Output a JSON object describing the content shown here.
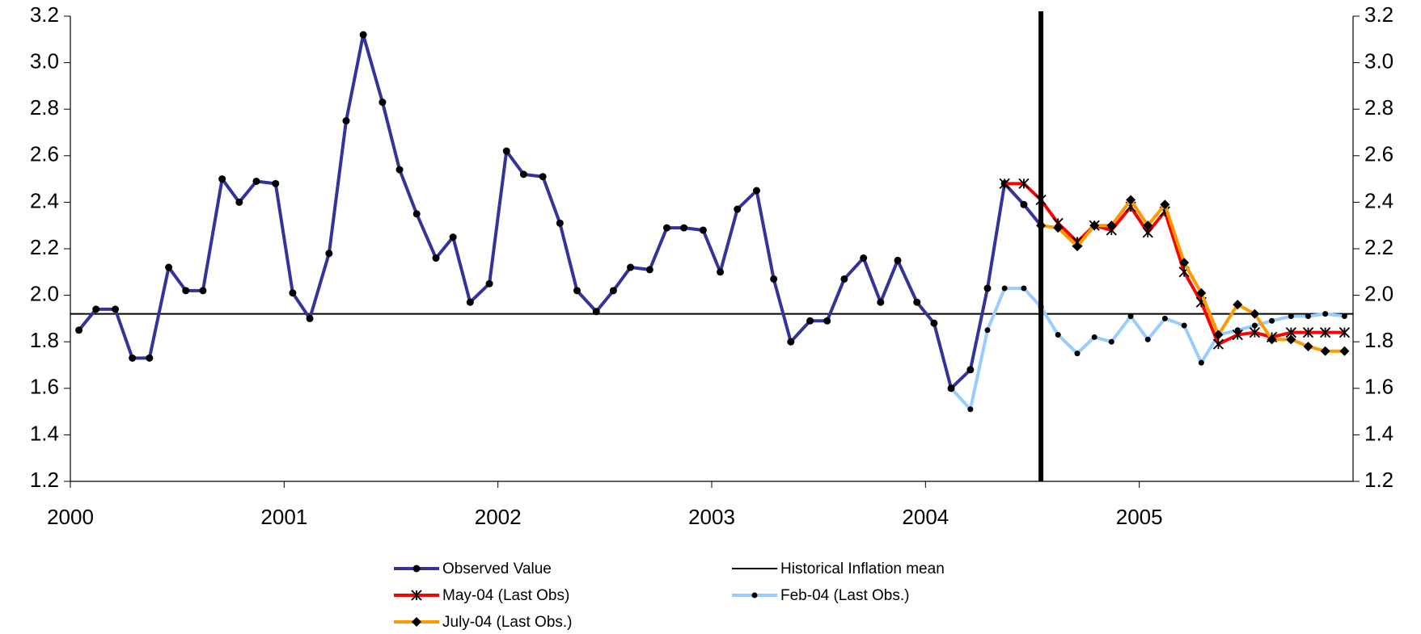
{
  "chart_data": {
    "type": "line",
    "x": [
      2000.04,
      2000.12,
      2000.21,
      2000.29,
      2000.37,
      2000.46,
      2000.54,
      2000.62,
      2000.71,
      2000.79,
      2000.87,
      2000.96,
      2001.04,
      2001.12,
      2001.21,
      2001.29,
      2001.37,
      2001.46,
      2001.54,
      2001.62,
      2001.71,
      2001.79,
      2001.87,
      2001.96,
      2002.04,
      2002.12,
      2002.21,
      2002.29,
      2002.37,
      2002.46,
      2002.54,
      2002.62,
      2002.71,
      2002.79,
      2002.87,
      2002.96,
      2003.04,
      2003.12,
      2003.21,
      2003.29,
      2003.37,
      2003.46,
      2003.54,
      2003.62,
      2003.71,
      2003.79,
      2003.87,
      2003.96,
      2004.04,
      2004.12,
      2004.21,
      2004.29,
      2004.37,
      2004.46,
      2004.54,
      2004.62,
      2004.71,
      2004.79,
      2004.87,
      2004.96,
      2005.04,
      2005.12,
      2005.21,
      2005.29,
      2005.37,
      2005.46,
      2005.54,
      2005.62,
      2005.71,
      2005.79,
      2005.87,
      2005.96
    ],
    "series": [
      {
        "name": "Observed Value",
        "color": "#333399",
        "marker": "circle",
        "values": [
          1.85,
          1.94,
          1.94,
          1.73,
          1.73,
          2.12,
          2.02,
          2.02,
          2.5,
          2.4,
          2.49,
          2.48,
          2.01,
          1.9,
          2.18,
          2.75,
          3.12,
          2.83,
          2.54,
          2.35,
          2.16,
          2.25,
          1.97,
          2.05,
          2.62,
          2.52,
          2.51,
          2.31,
          2.02,
          1.93,
          2.02,
          2.12,
          2.11,
          2.29,
          2.29,
          2.28,
          2.1,
          2.37,
          2.45,
          2.07,
          1.8,
          1.89,
          1.89,
          2.07,
          2.16,
          1.97,
          2.15,
          1.97,
          1.88,
          1.6,
          1.68,
          2.03,
          2.48,
          2.39,
          2.3,
          null,
          null,
          null,
          null,
          null,
          null,
          null,
          null,
          null,
          null,
          null,
          null,
          null,
          null,
          null,
          null,
          null
        ]
      },
      {
        "name": "May-04 (Last Obs)",
        "color": "#ff0000",
        "marker": "star",
        "values": [
          null,
          null,
          null,
          null,
          null,
          null,
          null,
          null,
          null,
          null,
          null,
          null,
          null,
          null,
          null,
          null,
          null,
          null,
          null,
          null,
          null,
          null,
          null,
          null,
          null,
          null,
          null,
          null,
          null,
          null,
          null,
          null,
          null,
          null,
          null,
          null,
          null,
          null,
          null,
          null,
          null,
          null,
          null,
          null,
          null,
          null,
          null,
          null,
          null,
          null,
          null,
          null,
          2.48,
          2.48,
          2.41,
          2.31,
          2.23,
          2.3,
          2.28,
          2.38,
          2.27,
          2.36,
          2.1,
          1.97,
          1.79,
          1.83,
          1.84,
          1.82,
          1.84,
          1.84,
          1.84,
          1.84
        ]
      },
      {
        "name": "Feb-04 (Last Obs.)",
        "color": "#99ccff",
        "marker": "dot",
        "values": [
          null,
          null,
          null,
          null,
          null,
          null,
          null,
          null,
          null,
          null,
          null,
          null,
          null,
          null,
          null,
          null,
          null,
          null,
          null,
          null,
          null,
          null,
          null,
          null,
          null,
          null,
          null,
          null,
          null,
          null,
          null,
          null,
          null,
          null,
          null,
          null,
          null,
          null,
          null,
          null,
          null,
          null,
          null,
          null,
          null,
          null,
          null,
          null,
          null,
          1.6,
          1.51,
          1.85,
          2.03,
          2.03,
          1.95,
          1.83,
          1.75,
          1.82,
          1.8,
          1.91,
          1.81,
          1.9,
          1.87,
          1.71,
          1.83,
          1.85,
          1.87,
          1.89,
          1.91,
          1.91,
          1.92,
          1.91
        ]
      },
      {
        "name": "July-04 (Last Obs.)",
        "color": "#ff9900",
        "marker": "diamond",
        "values": [
          null,
          null,
          null,
          null,
          null,
          null,
          null,
          null,
          null,
          null,
          null,
          null,
          null,
          null,
          null,
          null,
          null,
          null,
          null,
          null,
          null,
          null,
          null,
          null,
          null,
          null,
          null,
          null,
          null,
          null,
          null,
          null,
          null,
          null,
          null,
          null,
          null,
          null,
          null,
          null,
          null,
          null,
          null,
          null,
          null,
          null,
          null,
          null,
          null,
          null,
          null,
          null,
          null,
          null,
          2.3,
          2.29,
          2.21,
          2.3,
          2.3,
          2.41,
          2.3,
          2.39,
          2.14,
          2.01,
          1.83,
          1.96,
          1.92,
          1.81,
          1.81,
          1.78,
          1.76,
          1.76
        ]
      }
    ],
    "hline": {
      "name": "Historical Inflation mean",
      "value": 1.92,
      "color": "#000000"
    },
    "vline": 2004.54,
    "xlim": [
      2000,
      2006
    ],
    "xticks": [
      2000,
      2001,
      2002,
      2003,
      2004,
      2005
    ],
    "ylim": [
      1.2,
      3.2
    ],
    "yticks": [
      {
        "value": 1.2,
        "label": "1.2"
      },
      {
        "value": 1.4,
        "label": "1.4"
      },
      {
        "value": 1.6,
        "label": "1.6"
      },
      {
        "value": 1.8,
        "label": "1.8"
      },
      {
        "value": 2.0,
        "label": "2.0"
      },
      {
        "value": 2.2,
        "label": "2.2"
      },
      {
        "value": 2.4,
        "label": "2.4"
      },
      {
        "value": 2.6,
        "label": "2.6"
      },
      {
        "value": 2.8,
        "label": "2.8"
      },
      {
        "value": 3.0,
        "label": "3.0"
      },
      {
        "value": 3.2,
        "label": "3.2"
      }
    ],
    "marker_color": "#000000",
    "grid": false
  }
}
